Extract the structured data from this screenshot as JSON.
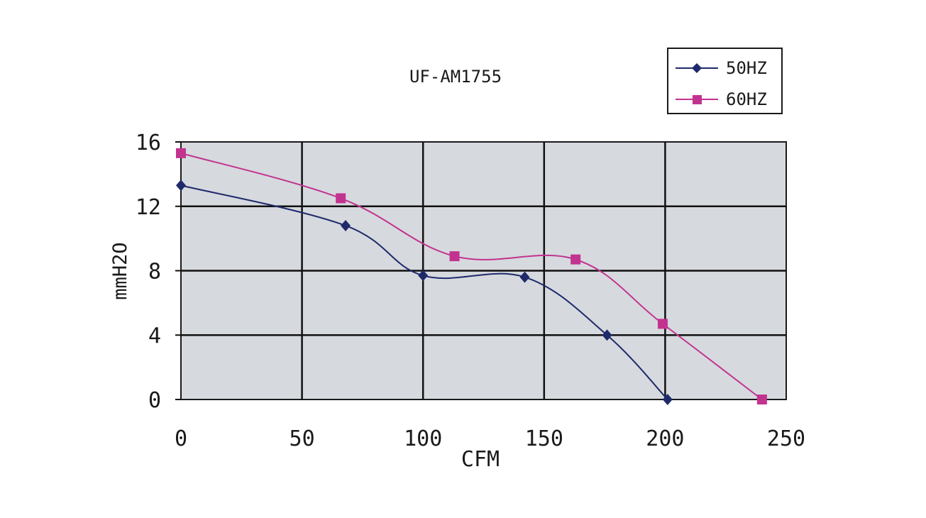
{
  "chart_data": {
    "type": "line",
    "title": "UF-AM1755",
    "xlabel": "CFM",
    "ylabel": "mmH2O",
    "xlim": [
      0,
      250
    ],
    "ylim": [
      0,
      16
    ],
    "x_ticks": [
      "0",
      "50",
      "100",
      "150",
      "200",
      "250"
    ],
    "y_ticks": [
      "0",
      "4",
      "8",
      "12",
      "16"
    ],
    "grid": true,
    "legend_position": "top-right",
    "series": [
      {
        "name": "50HZ",
        "color": "#1f2a6b",
        "marker": "diamond",
        "x": [
          0,
          68,
          100,
          142,
          176,
          201
        ],
        "y": [
          13.3,
          10.8,
          7.7,
          7.6,
          4.0,
          0.0
        ]
      },
      {
        "name": "60HZ",
        "color": "#c2338f",
        "marker": "square",
        "x": [
          0,
          66,
          113,
          163,
          199,
          240
        ],
        "y": [
          15.3,
          12.5,
          8.9,
          8.7,
          4.7,
          0.0
        ]
      }
    ]
  }
}
